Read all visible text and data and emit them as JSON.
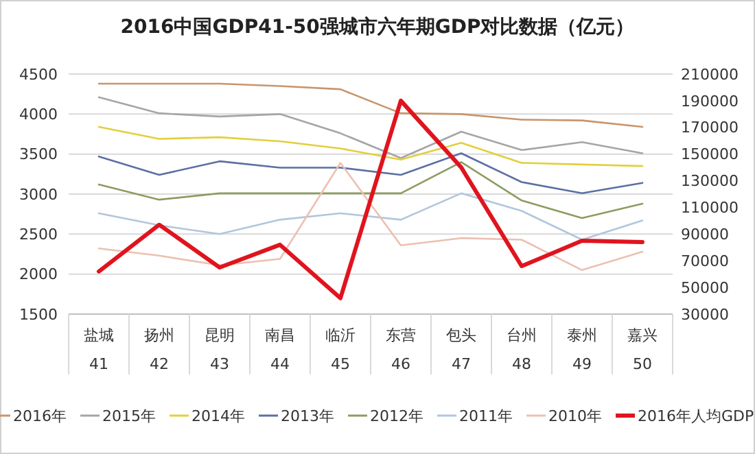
{
  "chart_data": {
    "type": "line",
    "title": "2016中国GDP41-50强城市六年期GDP对比数据（亿元）",
    "categories": [
      "盐城\n41",
      "扬州\n42",
      "昆明\n43",
      "南昌\n44",
      "临沂\n45",
      "东营\n46",
      "包头\n47",
      "台州\n48",
      "泰州\n49",
      "嘉兴\n50"
    ],
    "series": [
      {
        "name": "2016年",
        "color": "#c8956c",
        "values": [
          4380,
          4380,
          4380,
          4350,
          4310,
          4010,
          4000,
          3930,
          3920,
          3840
        ]
      },
      {
        "name": "2015年",
        "color": "#a5a5a5",
        "values": [
          4210,
          4010,
          3970,
          4000,
          3760,
          3450,
          3780,
          3550,
          3650,
          3510
        ]
      },
      {
        "name": "2014年",
        "color": "#e3cf3c",
        "values": [
          3840,
          3690,
          3710,
          3660,
          3570,
          3430,
          3640,
          3390,
          3370,
          3350
        ]
      },
      {
        "name": "2013年",
        "color": "#5b6fa3",
        "values": [
          3470,
          3240,
          3410,
          3330,
          3330,
          3240,
          3510,
          3150,
          3010,
          3140
        ]
      },
      {
        "name": "2012年",
        "color": "#8c9c60",
        "values": [
          3120,
          2930,
          3010,
          3010,
          3010,
          3010,
          3400,
          2920,
          2700,
          2880
        ]
      },
      {
        "name": "2011年",
        "color": "#b0c6dc",
        "values": [
          2760,
          2610,
          2500,
          2680,
          2760,
          2680,
          3010,
          2790,
          2430,
          2670
        ]
      },
      {
        "name": "2010年",
        "color": "#ecc0b0",
        "values": [
          2320,
          2230,
          2110,
          2190,
          3390,
          2360,
          2450,
          2430,
          2050,
          2280
        ]
      },
      {
        "name": "2016年人均GDP",
        "color": "#e0141e",
        "axis": "y2",
        "values": [
          62000,
          97000,
          65000,
          82000,
          42000,
          190000,
          140000,
          66000,
          85000,
          84000
        ]
      }
    ],
    "ylim": [
      1500,
      4500
    ],
    "yticks": [
      1500,
      2000,
      2500,
      3000,
      3500,
      4000,
      4500
    ],
    "y2lim": [
      30000,
      210000
    ],
    "y2ticks": [
      30000,
      50000,
      70000,
      90000,
      110000,
      130000,
      150000,
      170000,
      190000,
      210000
    ],
    "grid": "y",
    "legend": "bottom",
    "marker": "none",
    "line_style": "solid"
  }
}
